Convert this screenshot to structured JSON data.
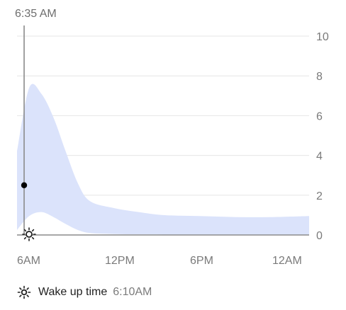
{
  "cursor_time": "6:35 AM",
  "legend": {
    "icon": "sun-icon",
    "label": "Wake up time",
    "value": "6:10AM"
  },
  "colors": {
    "band": "#dbe3fb",
    "grid": "#e6e6e6",
    "axis": "#8d8d8d",
    "text": "#7a7a7a",
    "marker": "#000000"
  },
  "chart_data": {
    "type": "area",
    "x_labels": [
      "6AM",
      "12PM",
      "6PM",
      "12AM"
    ],
    "y_ticks": [
      0,
      2,
      4,
      6,
      8,
      10
    ],
    "ylim": [
      0,
      10
    ],
    "x_hours_since_wake_window": [
      0,
      1,
      2,
      3,
      4,
      5,
      6,
      8,
      10,
      12,
      15,
      18,
      21,
      24
    ],
    "upper": [
      4.2,
      7.4,
      7.1,
      5.9,
      4.2,
      2.6,
      1.7,
      1.35,
      1.15,
      1.0,
      0.95,
      0.9,
      0.9,
      0.95
    ],
    "lower": [
      0.25,
      0.95,
      1.15,
      0.9,
      0.55,
      0.25,
      0.1,
      0.05,
      0.03,
      0.02,
      0.02,
      0.02,
      0.02,
      0.02
    ],
    "marker_x_hours": 0.5833,
    "marker_value": 2.5,
    "grid": true
  }
}
